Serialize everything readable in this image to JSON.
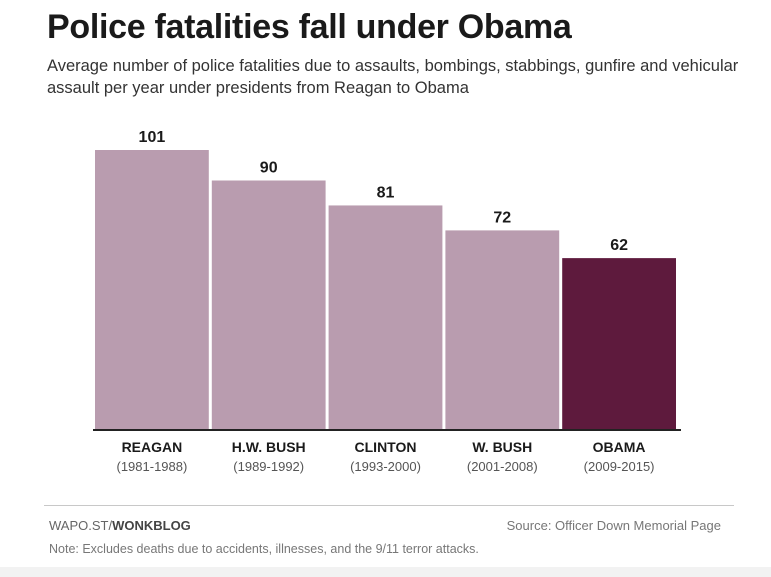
{
  "header": {
    "title": "Police fatalities fall under Obama",
    "subtitle": "Average number of police fatalities due to assaults, bombings, stabbings, gunfire and vehicular assault per year under presidents from Reagan to Obama"
  },
  "chart_data": {
    "type": "bar",
    "title": "Police fatalities fall under Obama",
    "subtitle": "Average number of police fatalities due to assaults, bombings, stabbings, gunfire and vehicular assault per year under presidents from Reagan to Obama",
    "categories": [
      "REAGAN",
      "H.W. BUSH",
      "CLINTON",
      "W. BUSH",
      "OBAMA"
    ],
    "periods": [
      "(1981-1988)",
      "(1989-1992)",
      "(1993-2000)",
      "(2001-2008)",
      "(2009-2015)"
    ],
    "values": [
      101,
      90,
      81,
      72,
      62
    ],
    "ylim": [
      0,
      101
    ],
    "xlabel": "",
    "ylabel": "",
    "grid": false,
    "colors": {
      "default": "#b99caf",
      "highlight": "#5e1a3d",
      "baseline": "#222222",
      "label": "#1a1a1a",
      "period": "#555555"
    },
    "highlight_index": 4
  },
  "footer": {
    "credit_prefix": "WAPO.ST/",
    "credit_brand": "WONKBLOG",
    "source": "Source: Officer Down Memorial Page",
    "note": "Note: Excludes deaths due to accidents, illnesses, and the 9/11 terror attacks."
  }
}
